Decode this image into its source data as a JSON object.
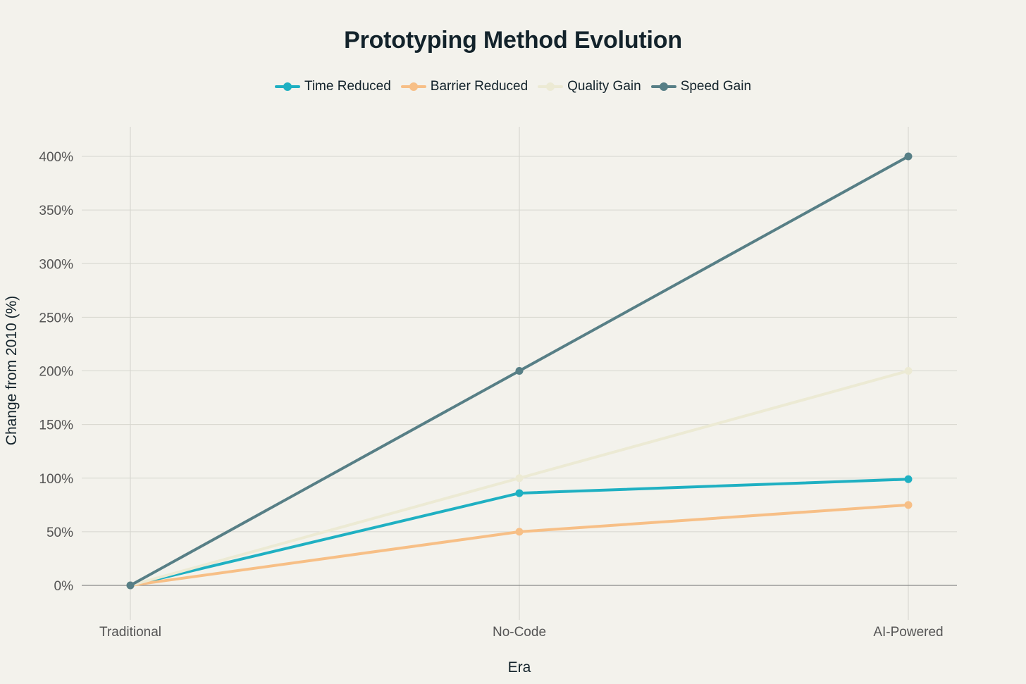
{
  "chart_data": {
    "type": "line",
    "title": "Prototyping Method Evolution",
    "xlabel": "Era",
    "ylabel": "Change from 2010 (%)",
    "categories": [
      "Traditional",
      "No-Code",
      "AI-Powered"
    ],
    "ylim": [
      -30,
      420
    ],
    "yticks": [
      0,
      50,
      100,
      150,
      200,
      250,
      300,
      350,
      400
    ],
    "ytick_labels": [
      "0%",
      "50%",
      "100%",
      "150%",
      "200%",
      "250%",
      "300%",
      "350%",
      "400%"
    ],
    "grid": true,
    "legend_position": "top-center",
    "series": [
      {
        "name": "Time Reduced",
        "color": "#1fb0c2",
        "values": [
          0,
          86,
          99
        ]
      },
      {
        "name": "Barrier Reduced",
        "color": "#f7bf86",
        "values": [
          0,
          50,
          75
        ]
      },
      {
        "name": "Quality Gain",
        "color": "#ecead4",
        "values": [
          0,
          100,
          200
        ]
      },
      {
        "name": "Speed Gain",
        "color": "#577f86",
        "values": [
          0,
          200,
          400
        ]
      }
    ]
  }
}
